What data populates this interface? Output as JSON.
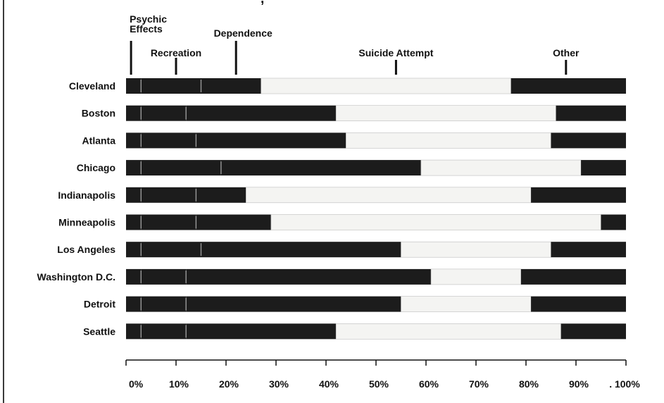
{
  "title_fragment": ", ",
  "chart_data": {
    "type": "bar",
    "orientation": "horizontal",
    "stacked": true,
    "categories": [
      "Cleveland",
      "Boston",
      "Atlanta",
      "Chicago",
      "Indianapolis",
      "Minneapolis",
      "Los Angeles",
      "Washington D.C.",
      "Detroit",
      "Seattle"
    ],
    "series": [
      {
        "name": "Psychic Effects",
        "values": [
          3,
          3,
          3,
          3,
          3,
          3,
          3,
          3,
          3,
          3
        ]
      },
      {
        "name": "Recreation",
        "values": [
          12,
          9,
          11,
          16,
          11,
          11,
          12,
          9,
          9,
          9
        ]
      },
      {
        "name": "Dependence",
        "values": [
          12,
          30,
          30,
          40,
          10,
          15,
          40,
          49,
          43,
          30
        ]
      },
      {
        "name": "Suicide Attempt",
        "values": [
          50,
          44,
          41,
          32,
          57,
          66,
          30,
          18,
          26,
          45
        ]
      },
      {
        "name": "Other",
        "values": [
          23,
          14,
          15,
          9,
          19,
          5,
          15,
          21,
          19,
          13
        ]
      }
    ],
    "x_ticks": [
      "0%",
      "10%",
      "20%",
      "30%",
      "40%",
      "50%",
      "60%",
      "70%",
      "80%",
      "90%",
      ". 100%"
    ],
    "xlim": [
      0,
      100
    ],
    "category_labels": [
      {
        "text": "Psychic\nEffects",
        "at": 1
      },
      {
        "text": "Recreation",
        "at": 10
      },
      {
        "text": "Dependence",
        "at": 22
      },
      {
        "text": "Suicide Attempt",
        "at": 54
      },
      {
        "text": "Other",
        "at": 88
      }
    ],
    "colors": {
      "dark": "#1c1c1c",
      "light": "#f4f4f2",
      "divider": "#9a9a9a"
    },
    "grid": false
  }
}
